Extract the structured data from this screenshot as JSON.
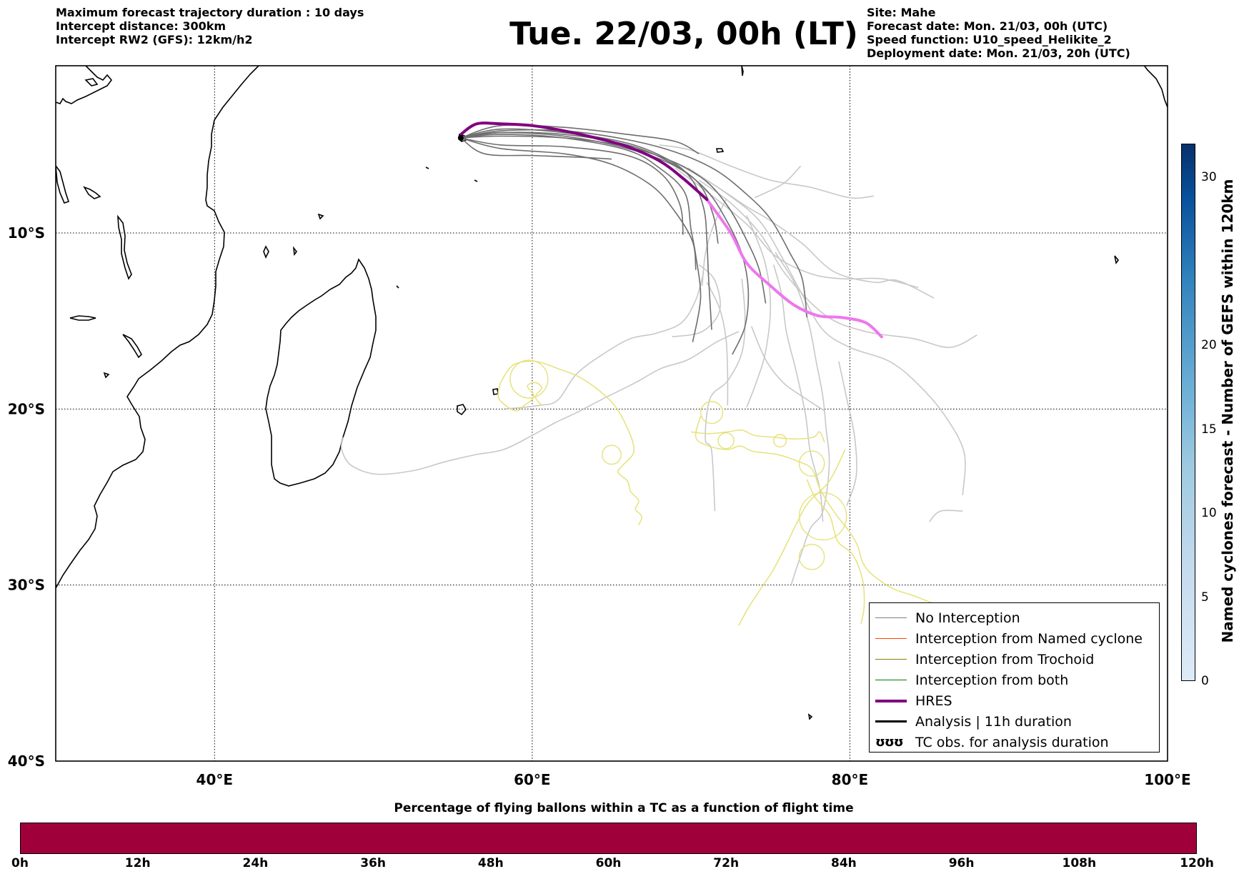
{
  "header": {
    "left_lines": [
      "Maximum forecast trajectory duration : 10 days",
      "Intercept distance: 300km",
      "Intercept RW2 (GFS):  12km/h2"
    ],
    "title": "Tue. 22/03, 00h (LT)",
    "right_lines": [
      "Site: Mahe",
      "Forecast date: Mon. 21/03, 00h (UTC)",
      "Speed function: U10_speed_Helikite_2",
      "Deployment date: Mon. 21/03, 20h (UTC)"
    ]
  },
  "map": {
    "lon_range": [
      30,
      100
    ],
    "lat_range": [
      -40,
      -0.5
    ],
    "lon_ticks": [
      {
        "value": 40,
        "label": "40°E"
      },
      {
        "value": 60,
        "label": "60°E"
      },
      {
        "value": 80,
        "label": "80°E"
      },
      {
        "value": 100,
        "label": "100°E"
      }
    ],
    "lat_ticks": [
      {
        "value": -10,
        "label": "10°S"
      },
      {
        "value": -20,
        "label": "20°S"
      },
      {
        "value": -30,
        "label": "30°S"
      },
      {
        "value": -40,
        "label": "40°S"
      }
    ],
    "launch_site": {
      "name": "Mahe",
      "lon": 55.5,
      "lat": -4.6
    },
    "hres_track": [
      [
        55.5,
        -4.4
      ],
      [
        56.5,
        -3.8
      ],
      [
        58,
        -3.8
      ],
      [
        60,
        -3.9
      ],
      [
        62,
        -4.2
      ],
      [
        64,
        -4.6
      ],
      [
        66,
        -5.1
      ],
      [
        68,
        -5.9
      ],
      [
        69.5,
        -6.9
      ],
      [
        71,
        -8.1
      ],
      [
        72.5,
        -10
      ],
      [
        73.5,
        -11.7
      ],
      [
        75,
        -13
      ],
      [
        76.5,
        -14.1
      ],
      [
        78,
        -14.7
      ],
      [
        79.5,
        -14.8
      ],
      [
        81,
        -15.1
      ],
      [
        82,
        -15.9
      ]
    ],
    "hres_bright_from_index": 10,
    "gefs_dark_tracks": [
      [
        [
          55.5,
          -4.6
        ],
        [
          58,
          -4.1
        ],
        [
          62,
          -4.3
        ],
        [
          66,
          -4.9
        ],
        [
          68.5,
          -5.8
        ],
        [
          70,
          -6.9
        ],
        [
          70.8,
          -8.6
        ],
        [
          71,
          -10.5
        ],
        [
          71.1,
          -12.5
        ],
        [
          71.3,
          -15.5
        ]
      ],
      [
        [
          55.5,
          -4.6
        ],
        [
          58,
          -4.4
        ],
        [
          62,
          -4.6
        ],
        [
          66,
          -5.3
        ],
        [
          68,
          -6.3
        ],
        [
          69.6,
          -7.7
        ],
        [
          70,
          -9.8
        ],
        [
          70.3,
          -11.3
        ],
        [
          70.6,
          -13.7
        ],
        [
          70.1,
          -16.2
        ]
      ],
      [
        [
          55.5,
          -4.6
        ],
        [
          58,
          -4.3
        ],
        [
          62,
          -4.5
        ],
        [
          66,
          -5.2
        ],
        [
          69,
          -6.2
        ],
        [
          71,
          -7.6
        ],
        [
          72.3,
          -9.4
        ],
        [
          73.2,
          -11.2
        ],
        [
          73.6,
          -13.2
        ],
        [
          73.4,
          -15.3
        ],
        [
          72.6,
          -16.9
        ]
      ],
      [
        [
          55.5,
          -4.6
        ],
        [
          58,
          -4.2
        ],
        [
          62,
          -4.2
        ],
        [
          66,
          -4.7
        ],
        [
          69,
          -5.4
        ],
        [
          71.5,
          -6.4
        ],
        [
          73.5,
          -7.8
        ],
        [
          75,
          -9.2
        ],
        [
          76.2,
          -11.1
        ],
        [
          77,
          -12.6
        ],
        [
          77.3,
          -14.8
        ]
      ],
      [
        [
          55.5,
          -4.6
        ],
        [
          58,
          -4.5
        ],
        [
          62,
          -4.6
        ],
        [
          66,
          -5.1
        ],
        [
          69,
          -6
        ],
        [
          71,
          -7.1
        ],
        [
          72.4,
          -8.6
        ],
        [
          73.5,
          -10.4
        ],
        [
          74.3,
          -12.1
        ],
        [
          74.7,
          -14
        ]
      ],
      [
        [
          55.5,
          -4.6
        ],
        [
          58,
          -4.3
        ],
        [
          62,
          -4.4
        ],
        [
          66,
          -5
        ],
        [
          68.5,
          -5.9
        ],
        [
          70.5,
          -7.2
        ],
        [
          71.4,
          -9
        ],
        [
          71.7,
          -10.6
        ]
      ],
      [
        [
          55.5,
          -4.6
        ],
        [
          58,
          -5
        ],
        [
          62,
          -5.1
        ],
        [
          66,
          -5.6
        ],
        [
          68.2,
          -6.7
        ],
        [
          69.3,
          -8.4
        ],
        [
          69.5,
          -10.1
        ]
      ],
      [
        [
          55.5,
          -4.6
        ],
        [
          58,
          -5.2
        ],
        [
          62,
          -5.5
        ],
        [
          65,
          -6.1
        ],
        [
          67.5,
          -7.3
        ],
        [
          69,
          -8.8
        ],
        [
          70.1,
          -10.5
        ],
        [
          70.3,
          -12.1
        ]
      ],
      [
        [
          55.5,
          -4.6
        ],
        [
          57,
          -5.5
        ],
        [
          60,
          -5.6
        ],
        [
          63,
          -5.7
        ],
        [
          65,
          -5.8
        ]
      ],
      [
        [
          55.5,
          -4.6
        ],
        [
          58,
          -3.9
        ],
        [
          62,
          -4
        ],
        [
          66,
          -4.4
        ],
        [
          69,
          -4.8
        ],
        [
          70.5,
          -5.5
        ]
      ]
    ],
    "gefs_light_tracks": [
      [
        [
          68,
          -5
        ],
        [
          70,
          -5.3
        ],
        [
          72.5,
          -6.2
        ],
        [
          75,
          -7
        ],
        [
          77.5,
          -7.4
        ],
        [
          80,
          -8
        ],
        [
          81.5,
          -7.9
        ]
      ],
      [
        [
          69,
          -6
        ],
        [
          71.5,
          -7.3
        ],
        [
          73.5,
          -8.5
        ],
        [
          75,
          -9.3
        ],
        [
          77,
          -10.6
        ],
        [
          79,
          -12.2
        ],
        [
          81.5,
          -12.8
        ],
        [
          83,
          -12.7
        ],
        [
          85.3,
          -13.7
        ]
      ],
      [
        [
          69,
          -6.3
        ],
        [
          71.2,
          -7.8
        ],
        [
          73.5,
          -9.5
        ],
        [
          75.3,
          -11.3
        ],
        [
          77.5,
          -12.3
        ],
        [
          79.5,
          -12.6
        ],
        [
          82,
          -12.6
        ],
        [
          84.3,
          -13.1
        ]
      ],
      [
        [
          70.5,
          -7
        ],
        [
          72.5,
          -8.3
        ],
        [
          74.4,
          -10.1
        ],
        [
          76,
          -12.4
        ],
        [
          78.5,
          -14.7
        ],
        [
          81,
          -15.6
        ],
        [
          84,
          -16
        ],
        [
          86.3,
          -16.5
        ],
        [
          88,
          -15.8
        ]
      ],
      [
        [
          69.8,
          -6.3
        ],
        [
          72.3,
          -7.8
        ],
        [
          74.3,
          -9.3
        ],
        [
          75.8,
          -11.5
        ],
        [
          77,
          -13.5
        ],
        [
          78.3,
          -15.5
        ],
        [
          80,
          -16.5
        ],
        [
          82.5,
          -17.3
        ],
        [
          84.3,
          -18.6
        ],
        [
          86,
          -20.4
        ],
        [
          87.2,
          -22.5
        ],
        [
          87.1,
          -24.9
        ]
      ],
      [
        [
          73.5,
          -9
        ],
        [
          74.6,
          -11.5
        ],
        [
          75,
          -14
        ],
        [
          74.7,
          -16.7
        ],
        [
          74.1,
          -18.5
        ],
        [
          73.5,
          -19.9
        ]
      ],
      [
        [
          74,
          -8
        ],
        [
          75.8,
          -7.2
        ],
        [
          76.9,
          -6.2
        ]
      ],
      [
        [
          72.2,
          -8.1
        ],
        [
          71.4,
          -9.6
        ],
        [
          70.9,
          -11.2
        ],
        [
          70.7,
          -13
        ]
      ],
      [
        [
          70.5,
          -11.8
        ],
        [
          71.5,
          -12.7
        ],
        [
          71.8,
          -14.4
        ],
        [
          70.7,
          -15.6
        ],
        [
          68.8,
          -15.9
        ]
      ],
      [
        [
          71,
          -12.8
        ],
        [
          71.8,
          -14.3
        ],
        [
          72.2,
          -16
        ],
        [
          72.3,
          -18
        ],
        [
          72.3,
          -19.8
        ]
      ],
      [
        [
          73.2,
          -12.6
        ],
        [
          73.4,
          -14.8
        ],
        [
          73.2,
          -16.8
        ],
        [
          72.3,
          -18.4
        ],
        [
          71.2,
          -19.4
        ],
        [
          70.9,
          -21.7
        ],
        [
          71.3,
          -22.4
        ],
        [
          71.5,
          -25.8
        ]
      ],
      [
        [
          75.3,
          -11.1
        ],
        [
          76.6,
          -13
        ],
        [
          77.4,
          -15.1
        ],
        [
          77.9,
          -17.4
        ],
        [
          78.3,
          -19.3
        ],
        [
          78.5,
          -21.1
        ],
        [
          78.7,
          -23.2
        ],
        [
          78.3,
          -25.8
        ],
        [
          77.5,
          -26.8
        ],
        [
          76.8,
          -28.6
        ],
        [
          76.3,
          -30
        ]
      ],
      [
        [
          75.2,
          -11.8
        ],
        [
          75.7,
          -13.5
        ],
        [
          76,
          -15.6
        ],
        [
          76.6,
          -17.8
        ],
        [
          77.2,
          -20.3
        ],
        [
          77.5,
          -22.4
        ],
        [
          78.1,
          -24.5
        ],
        [
          78.3,
          -26.4
        ]
      ],
      [
        [
          73.8,
          -15.3
        ],
        [
          74.7,
          -17.2
        ],
        [
          75.8,
          -18.5
        ],
        [
          77.2,
          -19.4
        ],
        [
          78.4,
          -20.1
        ]
      ],
      [
        [
          70.8,
          -12.2
        ],
        [
          70.3,
          -13.8
        ],
        [
          69.4,
          -15.1
        ],
        [
          67.8,
          -15.7
        ],
        [
          66.2,
          -16
        ],
        [
          64.6,
          -16.8
        ],
        [
          62.8,
          -18
        ],
        [
          61.6,
          -19.5
        ],
        [
          60.4,
          -19.8
        ],
        [
          58.3,
          -20
        ]
      ],
      [
        [
          73,
          -15.6
        ],
        [
          71.6,
          -16.2
        ],
        [
          69.8,
          -17.2
        ],
        [
          68.1,
          -17.7
        ],
        [
          66.5,
          -18.5
        ],
        [
          64.5,
          -19.4
        ],
        [
          62.8,
          -20.2
        ],
        [
          61.4,
          -20.8
        ],
        [
          60,
          -21.5
        ],
        [
          58.2,
          -22.3
        ],
        [
          56.4,
          -22.6
        ],
        [
          54.5,
          -23
        ],
        [
          52.5,
          -23.5
        ],
        [
          50.2,
          -23.7
        ],
        [
          48.6,
          -23.2
        ],
        [
          48,
          -22.3
        ],
        [
          48.1,
          -21.6
        ]
      ],
      [
        [
          79.3,
          -17.3
        ],
        [
          79.8,
          -19.4
        ],
        [
          80.3,
          -21.6
        ],
        [
          80.4,
          -23.8
        ],
        [
          79.8,
          -25.5
        ]
      ],
      [
        [
          85,
          -26.4
        ],
        [
          85.7,
          -25.8
        ],
        [
          87.1,
          -25.8
        ]
      ]
    ],
    "yellow_tracks": [
      [
        [
          58,
          -18.5
        ],
        [
          58.8,
          -17.5
        ],
        [
          60.2,
          -17.3
        ],
        [
          61.6,
          -17.7
        ],
        [
          63.2,
          -18.3
        ],
        [
          65,
          -19.6
        ],
        [
          66,
          -21.1
        ],
        [
          66.4,
          -22.4
        ],
        [
          65.7,
          -23.2
        ],
        [
          65.4,
          -23.6
        ],
        [
          66,
          -24.1
        ],
        [
          66.2,
          -24.7
        ],
        [
          66.7,
          -25.2
        ],
        [
          66.5,
          -25.7
        ],
        [
          66.9,
          -26.1
        ],
        [
          66.7,
          -26.6
        ]
      ],
      [
        [
          58,
          -18.5
        ],
        [
          57.9,
          -19.4
        ],
        [
          58.9,
          -20.1
        ],
        [
          59.5,
          -19.8
        ],
        [
          60.1,
          -19.3
        ],
        [
          59.7,
          -18.7
        ],
        [
          60.2,
          -18.5
        ],
        [
          60.6,
          -18.8
        ],
        [
          60.2,
          -19.3
        ],
        [
          60.6,
          -19.8
        ]
      ],
      [
        [
          70,
          -21.3
        ],
        [
          71.1,
          -21.4
        ],
        [
          72.3,
          -21.3
        ],
        [
          73.2,
          -21.2
        ],
        [
          74,
          -21.5
        ],
        [
          75.2,
          -21.6
        ],
        [
          76.5,
          -21.7
        ],
        [
          77.7,
          -21.6
        ],
        [
          78.1,
          -21.3
        ],
        [
          78.4,
          -21.9
        ]
      ],
      [
        [
          70.6,
          -20.4
        ],
        [
          70.3,
          -21.6
        ],
        [
          71.1,
          -22.1
        ],
        [
          72.3,
          -22.3
        ],
        [
          73.1,
          -22.1
        ],
        [
          73.9,
          -22.4
        ],
        [
          75.5,
          -22.6
        ],
        [
          76.8,
          -23
        ],
        [
          77.6,
          -23.4
        ],
        [
          78.1,
          -24.5
        ],
        [
          78.6,
          -25.3
        ],
        [
          79.3,
          -26.2
        ],
        [
          80,
          -27
        ],
        [
          80.5,
          -27.8
        ],
        [
          80.8,
          -28.7
        ],
        [
          81.4,
          -29.4
        ],
        [
          82.7,
          -30.2
        ],
        [
          84,
          -30.6
        ],
        [
          85.4,
          -31.1
        ]
      ],
      [
        [
          79.7,
          -22.3
        ],
        [
          78.7,
          -24.1
        ],
        [
          77.4,
          -25.3
        ],
        [
          76.7,
          -26.4
        ],
        [
          76,
          -27.7
        ],
        [
          75.2,
          -29.1
        ],
        [
          74.4,
          -30.2
        ],
        [
          73.6,
          -31.3
        ],
        [
          73,
          -32.3
        ]
      ],
      [
        [
          77.3,
          -24
        ],
        [
          77.8,
          -25
        ],
        [
          78.7,
          -26
        ],
        [
          79,
          -26.9
        ],
        [
          79.3,
          -27.6
        ],
        [
          80.2,
          -28.3
        ],
        [
          80.8,
          -29.7
        ],
        [
          80.9,
          -31.2
        ],
        [
          80.7,
          -32.2
        ]
      ]
    ]
  },
  "legend": {
    "items": [
      {
        "label": "No Interception",
        "color": "#808080",
        "width": 1.5
      },
      {
        "label": "Interception from Named cyclone",
        "color": "#ff4500",
        "width": 1.5
      },
      {
        "label": "Interception from Trochoid",
        "color": "#808000",
        "width": 1.5
      },
      {
        "label": "Interception from both",
        "color": "#008000",
        "width": 1.5
      },
      {
        "label": "HRES",
        "color": "#800080",
        "width": 4
      },
      {
        "label": "Analysis | 11h duration",
        "color": "#000000",
        "width": 3.5
      }
    ],
    "tc_symbol": "ʊʊʊ",
    "tc_label": "TC obs. for analysis duration"
  },
  "colorbar": {
    "label": "Named cyclones forecast - Number of GEFS within 120km",
    "ticks": [
      {
        "value": 0,
        "label": "0"
      },
      {
        "value": 5,
        "label": "5"
      },
      {
        "value": 10,
        "label": "10"
      },
      {
        "value": 15,
        "label": "15"
      },
      {
        "value": 20,
        "label": "20"
      },
      {
        "value": 30,
        "label": "30"
      }
    ],
    "range": [
      0,
      32
    ]
  },
  "bottom": {
    "title": "Percentage of flying ballons within a TC as a function of flight time",
    "bar_color": "#a0003a",
    "ticks": [
      "0h",
      "12h",
      "24h",
      "36h",
      "48h",
      "60h",
      "72h",
      "84h",
      "96h",
      "108h",
      "120h"
    ]
  },
  "colors": {
    "hres": "#800080",
    "hres_bright": "#ee77ee",
    "gefs_dark": "#6e6e6e",
    "gefs_light": "#c8c8c8",
    "yellow": "#e6e27a"
  }
}
